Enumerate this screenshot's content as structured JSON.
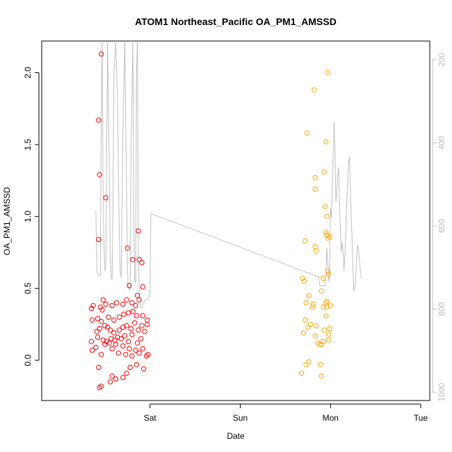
{
  "chart_data": {
    "type": "scatter",
    "title": "ATOM1 Northeast_Pacific OA_PM1_AMSSD",
    "xlabel": "Date",
    "ylabel": "OA_PM1_AMSSD",
    "xlim": [
      0.0,
      3.5
    ],
    "ylim": [
      -0.28,
      2.22
    ],
    "y2lim": [
      1020,
      155
    ],
    "x_ticks": [
      {
        "value": 1,
        "label": "Sat"
      },
      {
        "value": 2,
        "label": "Sun"
      },
      {
        "value": 3,
        "label": "Mon"
      },
      {
        "value": 4,
        "label": "Tue"
      }
    ],
    "y_ticks": [
      {
        "value": 0.0,
        "label": "0.0"
      },
      {
        "value": 0.5,
        "label": "0.5"
      },
      {
        "value": 1.0,
        "label": "1.0"
      },
      {
        "value": 1.5,
        "label": "1.5"
      },
      {
        "value": 2.0,
        "label": "2.0"
      }
    ],
    "y2_ticks": [
      {
        "value": 200,
        "label": "200"
      },
      {
        "value": 400,
        "label": "400"
      },
      {
        "value": 600,
        "label": "600"
      },
      {
        "value": 800,
        "label": "800"
      },
      {
        "value": 1000,
        "label": "1000"
      }
    ],
    "colors": {
      "series1": "#ff0000",
      "series2": "#ffa500",
      "altitude": "#c0c0c0",
      "axis": "#000000",
      "right_axis": "#bdbdbd"
    },
    "series": [
      {
        "color": "#ff0000",
        "points": [
          [
            0.44,
            -0.19
          ],
          [
            0.46,
            -0.18
          ],
          [
            0.43,
            -0.05
          ],
          [
            0.56,
            -0.15
          ],
          [
            0.58,
            -0.11
          ],
          [
            0.62,
            -0.13
          ],
          [
            0.7,
            -0.12
          ],
          [
            0.74,
            -0.09
          ],
          [
            0.78,
            -0.05
          ],
          [
            0.85,
            -0.03
          ],
          [
            0.93,
            -0.06
          ],
          [
            0.98,
            0.04
          ],
          [
            0.36,
            0.07
          ],
          [
            0.4,
            0.09
          ],
          [
            0.46,
            0.04
          ],
          [
            0.5,
            0.11
          ],
          [
            0.55,
            0.12
          ],
          [
            0.58,
            0.08
          ],
          [
            0.62,
            0.11
          ],
          [
            0.65,
            0.05
          ],
          [
            0.7,
            0.1
          ],
          [
            0.73,
            0.04
          ],
          [
            0.77,
            0.08
          ],
          [
            0.8,
            0.03
          ],
          [
            0.84,
            0.07
          ],
          [
            0.88,
            0.05
          ],
          [
            0.92,
            0.08
          ],
          [
            0.96,
            0.03
          ],
          [
            0.35,
            0.13
          ],
          [
            0.42,
            0.16
          ],
          [
            0.48,
            0.14
          ],
          [
            0.52,
            0.13
          ],
          [
            0.57,
            0.15
          ],
          [
            0.61,
            0.14
          ],
          [
            0.64,
            0.16
          ],
          [
            0.68,
            0.15
          ],
          [
            0.72,
            0.17
          ],
          [
            0.76,
            0.13
          ],
          [
            0.8,
            0.18
          ],
          [
            0.86,
            0.12
          ],
          [
            0.9,
            0.15
          ],
          [
            0.94,
            0.2
          ],
          [
            0.41,
            0.2
          ],
          [
            0.44,
            0.22
          ],
          [
            0.5,
            0.24
          ],
          [
            0.53,
            0.23
          ],
          [
            0.56,
            0.21
          ],
          [
            0.6,
            0.19
          ],
          [
            0.66,
            0.21
          ],
          [
            0.7,
            0.23
          ],
          [
            0.74,
            0.24
          ],
          [
            0.79,
            0.22
          ],
          [
            0.83,
            0.26
          ],
          [
            0.87,
            0.21
          ],
          [
            0.91,
            0.24
          ],
          [
            0.97,
            0.25
          ],
          [
            0.36,
            0.28
          ],
          [
            0.42,
            0.29
          ],
          [
            0.46,
            0.27
          ],
          [
            0.54,
            0.3
          ],
          [
            0.6,
            0.28
          ],
          [
            0.66,
            0.3
          ],
          [
            0.71,
            0.32
          ],
          [
            0.76,
            0.33
          ],
          [
            0.81,
            0.34
          ],
          [
            0.85,
            0.31
          ],
          [
            0.92,
            0.31
          ],
          [
            0.97,
            0.28
          ],
          [
            0.35,
            0.36
          ],
          [
            0.37,
            0.38
          ],
          [
            0.45,
            0.37
          ],
          [
            0.47,
            0.35
          ],
          [
            0.51,
            0.39
          ],
          [
            0.58,
            0.38
          ],
          [
            0.63,
            0.4
          ],
          [
            0.7,
            0.39
          ],
          [
            0.74,
            0.42
          ],
          [
            0.8,
            0.4
          ],
          [
            0.84,
            0.38
          ],
          [
            0.88,
            0.42
          ],
          [
            0.48,
            0.42
          ],
          [
            0.86,
            0.45
          ],
          [
            0.77,
            0.52
          ],
          [
            0.92,
            0.51
          ],
          [
            0.81,
            0.7
          ],
          [
            0.88,
            0.7
          ],
          [
            0.91,
            0.68
          ],
          [
            0.75,
            0.78
          ],
          [
            0.43,
            0.84
          ],
          [
            0.87,
            0.9
          ],
          [
            0.51,
            1.13
          ],
          [
            0.44,
            1.29
          ],
          [
            0.43,
            1.67
          ],
          [
            0.46,
            2.13
          ]
        ]
      },
      {
        "color": "#ffa500",
        "points": [
          [
            2.68,
            -0.09
          ],
          [
            2.7,
            0.19
          ],
          [
            2.73,
            -0.03
          ],
          [
            2.76,
            -0.01
          ],
          [
            2.72,
            0.28
          ],
          [
            2.75,
            0.23
          ],
          [
            2.78,
            0.25
          ],
          [
            2.8,
            0.37
          ],
          [
            2.81,
            0.39
          ],
          [
            2.83,
            0.17
          ],
          [
            2.84,
            0.24
          ],
          [
            2.86,
            0.12
          ],
          [
            2.88,
            0.11
          ],
          [
            2.89,
            -0.03
          ],
          [
            2.9,
            -0.11
          ],
          [
            2.9,
            0.11
          ],
          [
            2.92,
            0.13
          ],
          [
            2.93,
            0.21
          ],
          [
            2.95,
            0.31
          ],
          [
            2.96,
            0.41
          ],
          [
            2.98,
            0.18
          ],
          [
            2.99,
            0.22
          ],
          [
            2.98,
            0.14
          ],
          [
            3.0,
            0.38
          ],
          [
            2.69,
            0.57
          ],
          [
            2.71,
            0.55
          ],
          [
            2.73,
            0.4
          ],
          [
            2.76,
            0.45
          ],
          [
            2.72,
            0.83
          ],
          [
            2.74,
            1.58
          ],
          [
            2.82,
            1.88
          ],
          [
            2.83,
            1.27
          ],
          [
            2.83,
            1.19
          ],
          [
            2.84,
            0.76
          ],
          [
            2.83,
            0.79
          ],
          [
            2.9,
            0.48
          ],
          [
            2.92,
            0.37
          ],
          [
            2.92,
            0.57
          ],
          [
            2.93,
            1.31
          ],
          [
            2.94,
            1.07
          ],
          [
            2.95,
            1.52
          ],
          [
            2.95,
            0.89
          ],
          [
            2.96,
            0.87
          ],
          [
            2.97,
            0.85
          ],
          [
            2.97,
            0.62
          ],
          [
            2.98,
            0.6
          ],
          [
            2.97,
            2.0
          ],
          [
            2.99,
            0.86
          ],
          [
            2.96,
            1.0
          ],
          [
            2.95,
            0.4
          ],
          [
            2.96,
            0.37
          ]
        ]
      }
    ],
    "altitude_series": {
      "color": "#c0c0c0",
      "points": [
        [
          0.4,
          1.04
        ],
        [
          0.41,
          0.62
        ],
        [
          0.43,
          0.59
        ],
        [
          0.45,
          0.59
        ],
        [
          0.46,
          1.7
        ],
        [
          0.47,
          2.22
        ],
        [
          0.48,
          1.2
        ],
        [
          0.49,
          0.8
        ],
        [
          0.5,
          0.62
        ],
        [
          0.51,
          0.64
        ],
        [
          0.52,
          1.4
        ],
        [
          0.53,
          2.22
        ],
        [
          0.55,
          1.3
        ],
        [
          0.56,
          0.72
        ],
        [
          0.57,
          0.58
        ],
        [
          0.58,
          0.56
        ],
        [
          0.59,
          1.1
        ],
        [
          0.6,
          2.0
        ],
        [
          0.62,
          2.22
        ],
        [
          0.64,
          1.8
        ],
        [
          0.66,
          0.85
        ],
        [
          0.67,
          0.6
        ],
        [
          0.68,
          0.58
        ],
        [
          0.7,
          1.6
        ],
        [
          0.72,
          2.22
        ],
        [
          0.74,
          1.2
        ],
        [
          0.75,
          0.62
        ],
        [
          0.76,
          0.5
        ],
        [
          0.78,
          0.49
        ],
        [
          0.79,
          1.5
        ],
        [
          0.81,
          2.22
        ],
        [
          0.82,
          1.0
        ],
        [
          0.83,
          0.55
        ],
        [
          0.84,
          0.54
        ],
        [
          0.85,
          2.0
        ],
        [
          0.86,
          2.22
        ],
        [
          0.87,
          0.8
        ],
        [
          0.88,
          0.5
        ],
        [
          0.89,
          0.4
        ],
        [
          0.9,
          0.37
        ],
        [
          0.91,
          0.36
        ],
        [
          0.93,
          0.4
        ],
        [
          0.95,
          0.42
        ],
        [
          0.97,
          0.42
        ],
        [
          0.99,
          0.43
        ],
        [
          1.0,
          0.47
        ],
        [
          1.01,
          1.02
        ],
        [
          2.87,
          0.58
        ],
        [
          2.88,
          0.52
        ],
        [
          2.9,
          0.52
        ],
        [
          2.93,
          0.52
        ],
        [
          2.94,
          0.52
        ],
        [
          2.95,
          0.61
        ],
        [
          2.96,
          0.78
        ],
        [
          2.97,
          0.68
        ],
        [
          2.98,
          0.55
        ],
        [
          2.99,
          0.59
        ],
        [
          3.0,
          1.06
        ],
        [
          3.01,
          0.99
        ],
        [
          3.02,
          1.23
        ],
        [
          3.03,
          1.4
        ],
        [
          3.04,
          1.66
        ],
        [
          3.05,
          1.47
        ],
        [
          3.06,
          1.1
        ],
        [
          3.07,
          1.16
        ],
        [
          3.08,
          1.28
        ],
        [
          3.09,
          1.34
        ],
        [
          3.1,
          1.11
        ],
        [
          3.11,
          0.9
        ],
        [
          3.12,
          0.75
        ],
        [
          3.13,
          0.82
        ],
        [
          3.14,
          0.76
        ],
        [
          3.15,
          0.62
        ],
        [
          3.16,
          0.73
        ],
        [
          3.17,
          0.9
        ],
        [
          3.18,
          1.08
        ],
        [
          3.19,
          1.24
        ],
        [
          3.2,
          1.37
        ],
        [
          3.21,
          1.42
        ],
        [
          3.22,
          1.22
        ],
        [
          3.23,
          1.0
        ],
        [
          3.24,
          0.83
        ],
        [
          3.25,
          0.6
        ],
        [
          3.26,
          0.48
        ],
        [
          3.27,
          0.5
        ],
        [
          3.28,
          0.58
        ],
        [
          3.29,
          0.73
        ],
        [
          3.3,
          0.8
        ],
        [
          3.31,
          0.77
        ],
        [
          3.32,
          0.7
        ],
        [
          3.33,
          0.63
        ],
        [
          3.34,
          0.57
        ]
      ]
    }
  }
}
